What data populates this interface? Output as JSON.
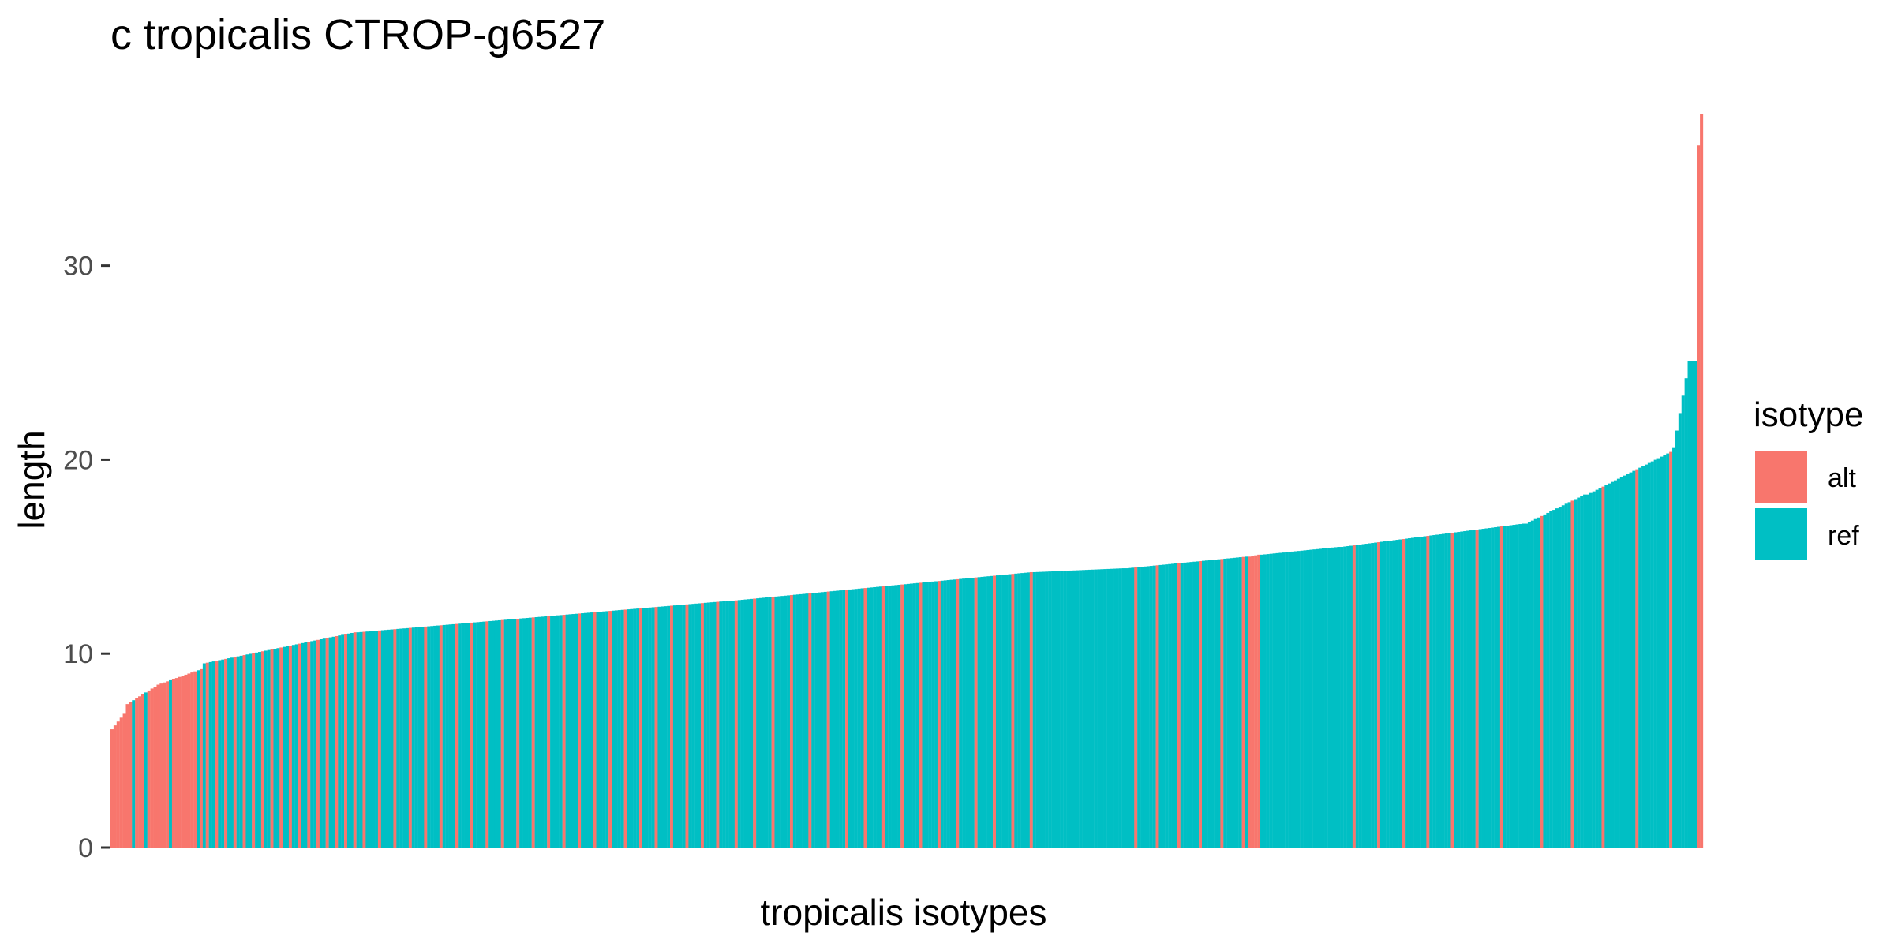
{
  "chart_data": {
    "type": "bar",
    "title": "c tropicalis CTROP-g6527",
    "xlabel": "tropicalis isotypes",
    "ylabel": "length",
    "ylim": [
      0,
      38
    ],
    "yticks": [
      0,
      10,
      20,
      30
    ],
    "grid": false,
    "x_tick_labels": "none",
    "legend": {
      "title": "isotype",
      "position": "right",
      "entries": [
        {
          "label": "alt",
          "color": "#F8766D"
        },
        {
          "label": "ref",
          "color": "#00BFC4"
        }
      ]
    },
    "bar_count": 518,
    "segments": [
      {
        "from": 0,
        "to": 5,
        "start": 6.1,
        "end": 6.9,
        "isotype": "alt"
      },
      {
        "from": 5,
        "to": 15,
        "start": 7.4,
        "end": 8.3,
        "isotype": "alt",
        "ref_every": 4
      },
      {
        "from": 15,
        "to": 30,
        "start": 8.4,
        "end": 9.2,
        "isotype": "alt",
        "ref_every": 9
      },
      {
        "from": 30,
        "to": 80,
        "start": 9.5,
        "end": 11.1,
        "isotype": "ref",
        "alt_every": 3
      },
      {
        "from": 80,
        "to": 200,
        "start": 11.1,
        "end": 12.7,
        "isotype": "ref",
        "alt_every": 5
      },
      {
        "from": 200,
        "to": 300,
        "start": 12.7,
        "end": 14.2,
        "isotype": "ref",
        "alt_every": 6
      },
      {
        "from": 300,
        "to": 330,
        "start": 14.2,
        "end": 14.4,
        "isotype": "ref"
      },
      {
        "from": 330,
        "to": 370,
        "start": 14.4,
        "end": 15.0,
        "isotype": "ref",
        "alt_every": 7
      },
      {
        "from": 370,
        "to": 374,
        "start": 15.0,
        "end": 15.1,
        "isotype": "alt"
      },
      {
        "from": 374,
        "to": 400,
        "start": 15.1,
        "end": 15.5,
        "isotype": "ref"
      },
      {
        "from": 400,
        "to": 460,
        "start": 15.5,
        "end": 16.7,
        "isotype": "ref",
        "alt_every": 8
      },
      {
        "from": 460,
        "to": 480,
        "start": 16.7,
        "end": 18.2,
        "isotype": "ref",
        "alt_every": 10
      },
      {
        "from": 480,
        "to": 508,
        "start": 18.2,
        "end": 20.4,
        "isotype": "ref",
        "alt_every": 11
      },
      {
        "from": 508,
        "to": 514,
        "start": 20.6,
        "end": 25.1,
        "isotype": "ref"
      },
      {
        "from": 514,
        "to": 516,
        "start": 25.1,
        "end": 25.1,
        "isotype": "ref"
      },
      {
        "from": 516,
        "to": 517,
        "start": 36.2,
        "end": 36.2,
        "isotype": "alt"
      },
      {
        "from": 517,
        "to": 518,
        "start": 37.8,
        "end": 37.8,
        "isotype": "alt"
      }
    ]
  }
}
